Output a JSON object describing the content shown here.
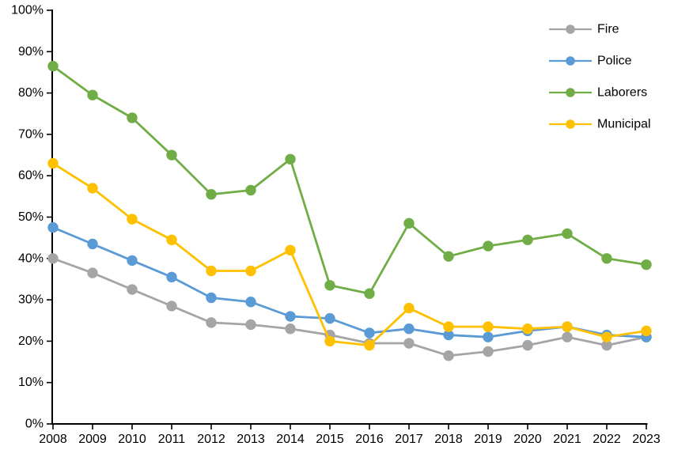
{
  "chart_data": {
    "type": "line",
    "title": "",
    "xlabel": "",
    "ylabel": "",
    "categories": [
      "2008",
      "2009",
      "2010",
      "2011",
      "2012",
      "2013",
      "2014",
      "2015",
      "2016",
      "2017",
      "2018",
      "2019",
      "2020",
      "2021",
      "2022",
      "2023"
    ],
    "series": [
      {
        "name": "Fire",
        "color": "#A5A5A5",
        "values": [
          40.0,
          36.5,
          32.5,
          28.5,
          24.5,
          24.0,
          23.0,
          21.5,
          19.5,
          19.5,
          16.5,
          17.5,
          19.0,
          21.0,
          19.0,
          21.0
        ]
      },
      {
        "name": "Police",
        "color": "#5B9BD5",
        "values": [
          47.5,
          43.5,
          39.5,
          35.5,
          30.5,
          29.5,
          26.0,
          25.5,
          22.0,
          23.0,
          21.5,
          21.0,
          22.5,
          23.5,
          21.5,
          21.0
        ]
      },
      {
        "name": "Laborers",
        "color": "#70AD47",
        "values": [
          86.5,
          79.5,
          74.0,
          65.0,
          55.5,
          56.5,
          64.0,
          33.5,
          31.5,
          48.5,
          40.5,
          43.0,
          44.5,
          46.0,
          40.0,
          38.5
        ]
      },
      {
        "name": "Municipal",
        "color": "#FFC000",
        "values": [
          63.0,
          57.0,
          49.5,
          44.5,
          37.0,
          37.0,
          42.0,
          20.0,
          19.0,
          28.0,
          23.5,
          23.5,
          23.0,
          23.5,
          21.0,
          22.5
        ]
      }
    ],
    "y_axis": {
      "min": 0,
      "max": 100,
      "step": 10,
      "tick_labels": [
        "0%",
        "10%",
        "20%",
        "30%",
        "40%",
        "50%",
        "60%",
        "70%",
        "80%",
        "90%",
        "100%"
      ]
    },
    "legend": {
      "position": "top-right",
      "items": [
        "Fire",
        "Police",
        "Laborers",
        "Municipal"
      ]
    },
    "grid": false,
    "axis_color": "#000000",
    "background": "#FFFFFF"
  }
}
